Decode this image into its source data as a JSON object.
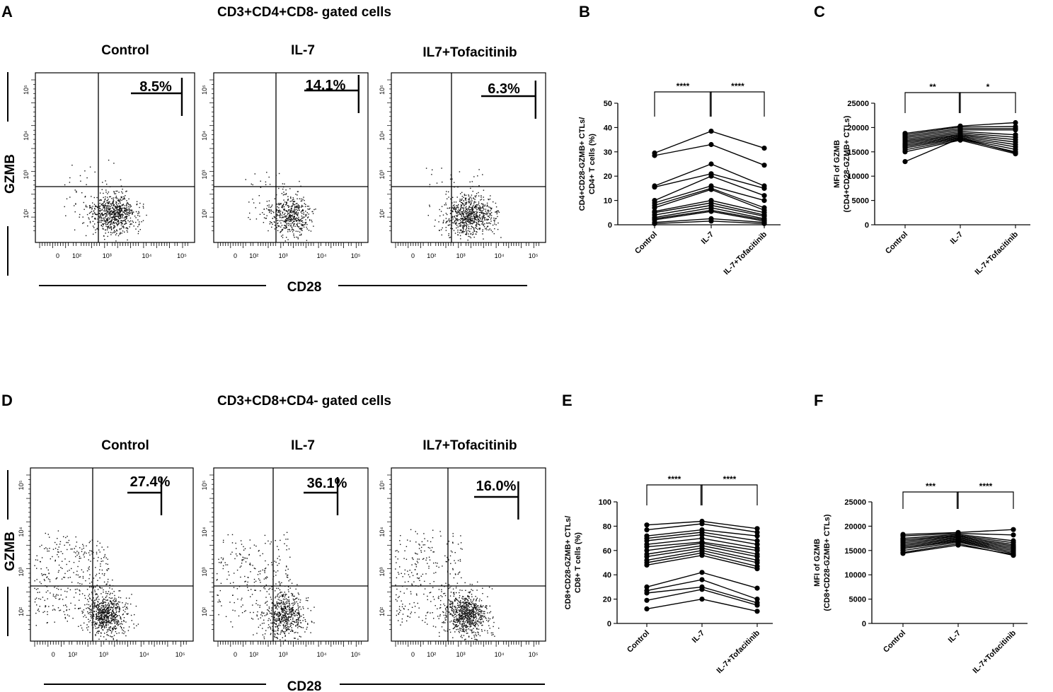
{
  "panels": {
    "A": {
      "label": "A",
      "gate_title": "CD3+CD4+CD8- gated cells",
      "x_axis_label": "CD28",
      "y_axis_label": "GZMB",
      "plots": [
        {
          "condition": "Control",
          "percent": "8.5%"
        },
        {
          "condition": "IL-7",
          "percent": "14.1%"
        },
        {
          "condition": "IL7+Tofacitinib",
          "percent": "6.3%"
        }
      ],
      "x_ticks": [
        "0",
        "10²",
        "10³",
        "10⁴",
        "10⁵"
      ],
      "y_ticks": [
        "10²",
        "10³",
        "10⁴",
        "10⁵"
      ]
    },
    "D": {
      "label": "D",
      "gate_title": "CD3+CD8+CD4- gated cells",
      "x_axis_label": "CD28",
      "y_axis_label": "GZMB",
      "plots": [
        {
          "condition": "Control",
          "percent": "27.4%"
        },
        {
          "condition": "IL-7",
          "percent": "36.1%"
        },
        {
          "condition": "IL7+Tofacitinib",
          "percent": "16.0%"
        }
      ],
      "x_ticks": [
        "0",
        "10²",
        "10³",
        "10⁴",
        "10⁵"
      ],
      "y_ticks": [
        "10²",
        "10³",
        "10⁴",
        "10⁵"
      ]
    }
  },
  "chart_data": [
    {
      "panel": "B",
      "type": "line",
      "categories": [
        "Control",
        "IL-7",
        "IL-7+Tofacitinib"
      ],
      "ylabel": [
        "CD4+CD28-GZMB+ CTLs/",
        "CD4+ T cells (%)"
      ],
      "ylim": [
        0,
        50
      ],
      "yticks": [
        0,
        10,
        20,
        30,
        40,
        50
      ],
      "significance": [
        "****",
        "****"
      ],
      "series": [
        {
          "values": [
            29.5,
            38.5,
            31.5
          ]
        },
        {
          "values": [
            28.5,
            33,
            24.5
          ]
        },
        {
          "values": [
            16,
            25,
            16
          ]
        },
        {
          "values": [
            15.5,
            21,
            15
          ]
        },
        {
          "values": [
            10,
            20,
            12
          ]
        },
        {
          "values": [
            9,
            16,
            10
          ]
        },
        {
          "values": [
            8,
            15,
            7
          ]
        },
        {
          "values": [
            7,
            14.5,
            6
          ]
        },
        {
          "values": [
            5.5,
            10,
            5
          ]
        },
        {
          "values": [
            5,
            9,
            4
          ]
        },
        {
          "values": [
            4,
            8,
            3.5
          ]
        },
        {
          "values": [
            3,
            7,
            2.5
          ]
        },
        {
          "values": [
            2.5,
            6,
            2
          ]
        },
        {
          "values": [
            2,
            5.5,
            1.5
          ]
        },
        {
          "values": [
            1,
            2.5,
            1
          ]
        },
        {
          "values": [
            0.5,
            1.5,
            0.5
          ]
        }
      ]
    },
    {
      "panel": "C",
      "type": "line",
      "categories": [
        "Control",
        "IL-7",
        "IL-7+Tofacitinib"
      ],
      "ylabel": [
        "MFI of GZMB",
        "(CD4+CD28-GZMB+ CTLs)"
      ],
      "ylim": [
        0,
        25000
      ],
      "yticks": [
        0,
        5000,
        10000,
        15000,
        20000,
        25000
      ],
      "significance": [
        "**",
        "*"
      ],
      "series": [
        {
          "values": [
            18800,
            20300,
            21000
          ]
        },
        {
          "values": [
            18500,
            20100,
            20200
          ]
        },
        {
          "values": [
            18200,
            19800,
            19800
          ]
        },
        {
          "values": [
            17900,
            19500,
            19500
          ]
        },
        {
          "values": [
            17600,
            19200,
            18500
          ]
        },
        {
          "values": [
            17300,
            18900,
            18000
          ]
        },
        {
          "values": [
            17000,
            18600,
            17500
          ]
        },
        {
          "values": [
            16700,
            18400,
            17000
          ]
        },
        {
          "values": [
            16400,
            18200,
            16500
          ]
        },
        {
          "values": [
            16100,
            18000,
            16000
          ]
        },
        {
          "values": [
            15800,
            17800,
            15500
          ]
        },
        {
          "values": [
            15400,
            17600,
            15000
          ]
        },
        {
          "values": [
            15000,
            17400,
            14600
          ]
        },
        {
          "values": [
            13000,
            17800,
            14800
          ]
        }
      ]
    },
    {
      "panel": "E",
      "type": "line",
      "categories": [
        "Control",
        "IL-7",
        "IL-7+Tofacitinib"
      ],
      "ylabel": [
        "CD8+CD28-GZMB+ CTLs/",
        "CD8+ T cells (%)"
      ],
      "ylim": [
        0,
        100
      ],
      "yticks": [
        0,
        20,
        40,
        60,
        80,
        100
      ],
      "significance": [
        "****",
        "****"
      ],
      "series": [
        {
          "values": [
            81,
            84,
            78
          ]
        },
        {
          "values": [
            77,
            82,
            75
          ]
        },
        {
          "values": [
            72,
            77,
            72
          ]
        },
        {
          "values": [
            70,
            75,
            68
          ]
        },
        {
          "values": [
            68,
            73,
            65
          ]
        },
        {
          "values": [
            65,
            70,
            62
          ]
        },
        {
          "values": [
            63,
            67,
            60
          ]
        },
        {
          "values": [
            60,
            66,
            57
          ]
        },
        {
          "values": [
            57,
            64,
            55
          ]
        },
        {
          "values": [
            55,
            62,
            52
          ]
        },
        {
          "values": [
            52,
            60,
            50
          ]
        },
        {
          "values": [
            50,
            58,
            47
          ]
        },
        {
          "values": [
            48,
            56,
            45
          ]
        },
        {
          "values": [
            30,
            42,
            29
          ]
        },
        {
          "values": [
            27,
            36,
            20
          ]
        },
        {
          "values": [
            25,
            30,
            17
          ]
        },
        {
          "values": [
            19,
            28,
            15
          ]
        },
        {
          "values": [
            12,
            20,
            10
          ]
        }
      ]
    },
    {
      "panel": "F",
      "type": "line",
      "categories": [
        "Control",
        "IL-7",
        "IL-7+Tofacitinib"
      ],
      "ylabel": [
        "MFI of GZMB",
        "(CD8+CD28-GZMB+ CTLs)"
      ],
      "ylim": [
        0,
        25000
      ],
      "yticks": [
        0,
        5000,
        10000,
        15000,
        20000,
        25000
      ],
      "significance": [
        "***",
        "****"
      ],
      "series": [
        {
          "values": [
            18300,
            18700,
            19300
          ]
        },
        {
          "values": [
            18000,
            18500,
            18200
          ]
        },
        {
          "values": [
            17500,
            18300,
            17000
          ]
        },
        {
          "values": [
            17200,
            18100,
            16600
          ]
        },
        {
          "values": [
            16900,
            17900,
            16200
          ]
        },
        {
          "values": [
            16600,
            17700,
            15900
          ]
        },
        {
          "values": [
            16300,
            17500,
            15600
          ]
        },
        {
          "values": [
            16000,
            17300,
            15300
          ]
        },
        {
          "values": [
            15700,
            17100,
            15000
          ]
        },
        {
          "values": [
            15400,
            16900,
            14700
          ]
        },
        {
          "values": [
            15000,
            16700,
            14400
          ]
        },
        {
          "values": [
            14600,
            16400,
            14000
          ]
        },
        {
          "values": [
            14400,
            16100,
            14200
          ]
        }
      ]
    }
  ]
}
